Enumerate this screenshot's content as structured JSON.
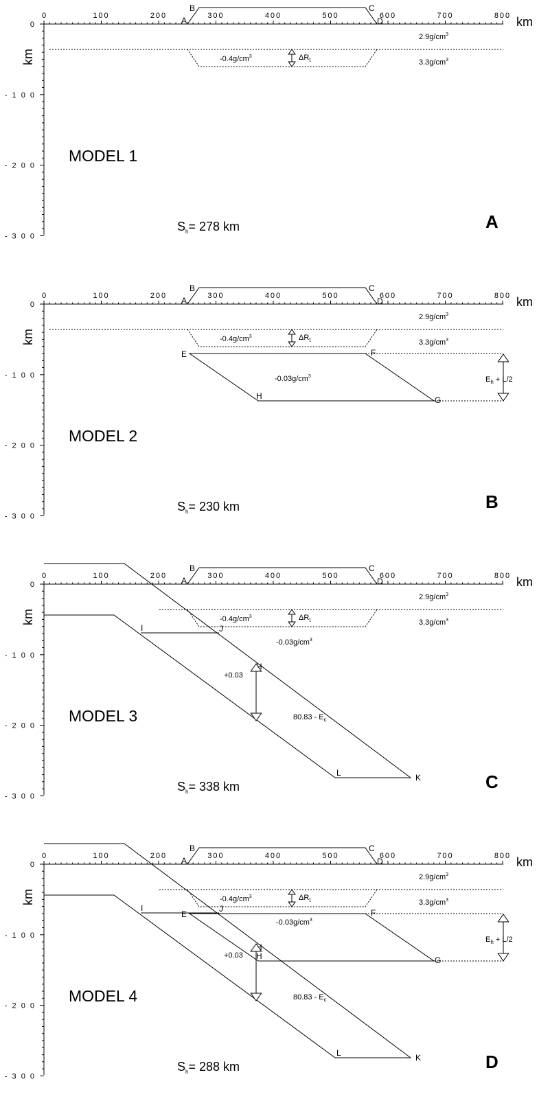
{
  "axes": {
    "x_ticks": [
      "0",
      "100",
      "200",
      "300",
      "400",
      "500",
      "600",
      "700",
      "800"
    ],
    "y_ticks": [
      "0",
      "- 1 0 0",
      "- 2 0 0",
      "- 3 0 0"
    ],
    "x_unit": "km",
    "y_unit": "km"
  },
  "labels": {
    "density_upper": "2.9g/cm",
    "density_lower": "3.3g/cm",
    "density_root": "-0.4g/cm",
    "density_slab": "-0.03g/cm",
    "cube": "3",
    "delta_r_prefix": "ΔR",
    "delta_r_sub": "t",
    "eh_prefix": "E",
    "eh_sub": "h",
    "eh_suffix": " + L/2",
    "plus_dens": "+0.03",
    "thickness_prefix": "80.83 - E",
    "thickness_sub": "c",
    "sh_prefix": "S",
    "sh_sub": "h",
    "points": {
      "A": "A",
      "B": "B",
      "C": "C",
      "D": "D",
      "E": "E",
      "F": "F",
      "G": "G",
      "H": "H",
      "I": "I",
      "J": "J",
      "K": "K",
      "L": "L"
    }
  },
  "panels": [
    {
      "model": "MODEL 1",
      "letter": "A",
      "sh_value": "= 278 km"
    },
    {
      "model": "MODEL 2",
      "letter": "B",
      "sh_value": "= 230 km"
    },
    {
      "model": "MODEL 3",
      "letter": "C",
      "sh_value": "= 338 km"
    },
    {
      "model": "MODEL 4",
      "letter": "D",
      "sh_value": "= 288 km"
    }
  ]
}
